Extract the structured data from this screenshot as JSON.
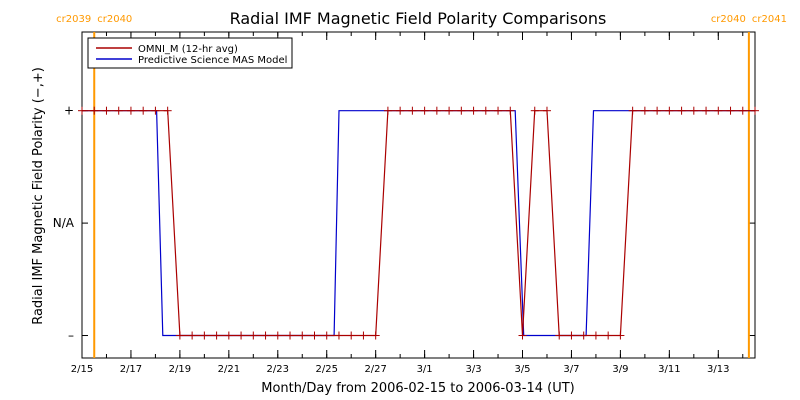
{
  "chart_data": {
    "type": "line",
    "title": "Radial IMF Magnetic Field Polarity Comparisons",
    "xlabel": "Month/Day from 2006-02-15 to 2006-03-14 (UT)",
    "ylabel": "Radial IMF Magnetic Field Polarity (−,+)",
    "x_unit": "days",
    "xlim": [
      0,
      27.5
    ],
    "ylim": [
      -1.7,
      1.2
    ],
    "y_ticks": [
      {
        "value": 0.5,
        "label": "+"
      },
      {
        "value": -0.5,
        "label": "N/A"
      },
      {
        "value": -1.5,
        "label": "–"
      }
    ],
    "x_ticks": [
      {
        "value": 0,
        "label": "2/15"
      },
      {
        "value": 2,
        "label": "2/17"
      },
      {
        "value": 4,
        "label": "2/19"
      },
      {
        "value": 6,
        "label": "2/21"
      },
      {
        "value": 8,
        "label": "2/23"
      },
      {
        "value": 10,
        "label": "2/25"
      },
      {
        "value": 12,
        "label": "2/27"
      },
      {
        "value": 14,
        "label": "3/1"
      },
      {
        "value": 16,
        "label": "3/3"
      },
      {
        "value": 18,
        "label": "3/5"
      },
      {
        "value": 20,
        "label": "3/7"
      },
      {
        "value": 22,
        "label": "3/9"
      },
      {
        "value": 24,
        "label": "3/11"
      },
      {
        "value": 26,
        "label": "3/13"
      }
    ],
    "legend_position": "top-left",
    "rotation_markers": [
      {
        "x": 0.5,
        "label_left": "cr2039",
        "label_right": "cr2040",
        "color": "#ff9900"
      },
      {
        "x": 27.25,
        "label_left": "cr2040",
        "label_right": "cr2041",
        "color": "#ff9900"
      }
    ],
    "series": [
      {
        "name": "OMNI_M (12-hr avg)",
        "color": "#aa0000",
        "markers": true,
        "x": [
          0,
          0.5,
          1,
          1.5,
          2,
          2.5,
          3,
          3.5,
          4,
          4.5,
          5,
          5.5,
          6,
          6.5,
          7,
          7.5,
          8,
          8.5,
          9,
          9.5,
          10,
          10.5,
          11,
          11.5,
          12,
          12.5,
          13,
          13.5,
          14,
          14.5,
          15,
          15.5,
          16,
          16.5,
          17,
          17.5,
          18,
          18.5,
          19,
          19.5,
          20,
          20.5,
          21,
          21.5,
          22,
          22.5,
          23,
          23.5,
          24,
          24.5,
          25,
          25.5,
          26,
          26.5,
          27,
          27.5
        ],
        "y": [
          0.5,
          0.5,
          0.5,
          0.5,
          0.5,
          0.5,
          0.5,
          0.5,
          -1.5,
          -1.5,
          -1.5,
          -1.5,
          -1.5,
          -1.5,
          -1.5,
          -1.5,
          -1.5,
          -1.5,
          -1.5,
          -1.5,
          -1.5,
          -1.5,
          -1.5,
          -1.5,
          -1.5,
          0.5,
          0.5,
          0.5,
          0.5,
          0.5,
          0.5,
          0.5,
          0.5,
          0.5,
          0.5,
          0.5,
          -1.5,
          0.5,
          0.5,
          -1.5,
          -1.5,
          -1.5,
          -1.5,
          -1.5,
          -1.5,
          0.5,
          0.5,
          0.5,
          0.5,
          0.5,
          0.5,
          0.5,
          0.5,
          0.5,
          0.5,
          0.5
        ]
      },
      {
        "name": "Predictive Science MAS Model",
        "color": "#0000cc",
        "markers": false,
        "x": [
          0,
          3.05,
          3.3,
          10.3,
          10.5,
          17.7,
          18.05,
          20.6,
          20.9,
          27.5
        ],
        "y": [
          0.5,
          0.5,
          -1.5,
          -1.5,
          0.5,
          0.5,
          -1.5,
          -1.5,
          0.5,
          0.5
        ]
      }
    ]
  }
}
